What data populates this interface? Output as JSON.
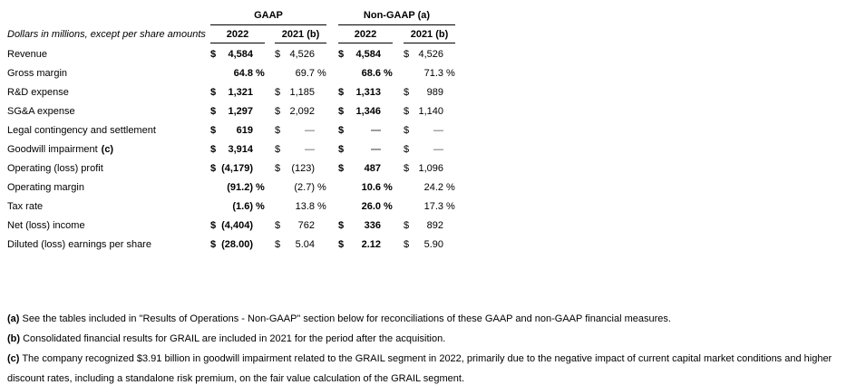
{
  "table": {
    "caption": "Dollars in millions, except per share amounts",
    "group_headers": [
      "GAAP",
      "Non-GAAP (a)"
    ],
    "col_headers": [
      "2022",
      "2021 (b)",
      "2022",
      "2021 (b)"
    ],
    "rows": [
      {
        "label": "Revenue",
        "note": "",
        "cells": [
          {
            "c": "$",
            "v": "4,584",
            "s": ""
          },
          {
            "c": "$",
            "v": "4,526",
            "s": ""
          },
          {
            "c": "$",
            "v": "4,584",
            "s": ""
          },
          {
            "c": "$",
            "v": "4,526",
            "s": ""
          }
        ]
      },
      {
        "label": "Gross margin",
        "note": "",
        "cells": [
          {
            "c": "",
            "v": "64.8",
            "s": "%"
          },
          {
            "c": "",
            "v": "69.7",
            "s": "%"
          },
          {
            "c": "",
            "v": "68.6",
            "s": "%"
          },
          {
            "c": "",
            "v": "71.3",
            "s": "%"
          }
        ]
      },
      {
        "label": "R&D expense",
        "note": "",
        "cells": [
          {
            "c": "$",
            "v": "1,321",
            "s": ""
          },
          {
            "c": "$",
            "v": "1,185",
            "s": ""
          },
          {
            "c": "$",
            "v": "1,313",
            "s": ""
          },
          {
            "c": "$",
            "v": "989",
            "s": ""
          }
        ]
      },
      {
        "label": "SG&A expense",
        "note": "",
        "cells": [
          {
            "c": "$",
            "v": "1,297",
            "s": ""
          },
          {
            "c": "$",
            "v": "2,092",
            "s": ""
          },
          {
            "c": "$",
            "v": "1,346",
            "s": ""
          },
          {
            "c": "$",
            "v": "1,140",
            "s": ""
          }
        ]
      },
      {
        "label": "Legal contingency and settlement",
        "note": "",
        "cells": [
          {
            "c": "$",
            "v": "619",
            "s": ""
          },
          {
            "c": "$",
            "v": "—",
            "s": ""
          },
          {
            "c": "$",
            "v": "—",
            "s": ""
          },
          {
            "c": "$",
            "v": "—",
            "s": ""
          }
        ]
      },
      {
        "label": "Goodwill impairment",
        "note": "(c)",
        "cells": [
          {
            "c": "$",
            "v": "3,914",
            "s": ""
          },
          {
            "c": "$",
            "v": "—",
            "s": ""
          },
          {
            "c": "$",
            "v": "—",
            "s": ""
          },
          {
            "c": "$",
            "v": "—",
            "s": ""
          }
        ]
      },
      {
        "label": "Operating (loss) profit",
        "note": "",
        "cells": [
          {
            "c": "$",
            "v": "(4,179)",
            "s": ""
          },
          {
            "c": "$",
            "v": "(123)",
            "s": ""
          },
          {
            "c": "$",
            "v": "487",
            "s": ""
          },
          {
            "c": "$",
            "v": "1,096",
            "s": ""
          }
        ]
      },
      {
        "label": "Operating margin",
        "note": "",
        "cells": [
          {
            "c": "",
            "v": "(91.2)",
            "s": "%"
          },
          {
            "c": "",
            "v": "(2.7)",
            "s": "%"
          },
          {
            "c": "",
            "v": "10.6",
            "s": "%"
          },
          {
            "c": "",
            "v": "24.2",
            "s": "%"
          }
        ]
      },
      {
        "label": "Tax rate",
        "note": "",
        "cells": [
          {
            "c": "",
            "v": "(1.6)",
            "s": "%"
          },
          {
            "c": "",
            "v": "13.8",
            "s": "%"
          },
          {
            "c": "",
            "v": "26.0",
            "s": "%"
          },
          {
            "c": "",
            "v": "17.3",
            "s": "%"
          }
        ]
      },
      {
        "label": "Net (loss) income",
        "note": "",
        "cells": [
          {
            "c": "$",
            "v": "(4,404)",
            "s": ""
          },
          {
            "c": "$",
            "v": "762",
            "s": ""
          },
          {
            "c": "$",
            "v": "336",
            "s": ""
          },
          {
            "c": "$",
            "v": "892",
            "s": ""
          }
        ]
      },
      {
        "label": "Diluted (loss) earnings per share",
        "note": "",
        "cells": [
          {
            "c": "$",
            "v": "(28.00)",
            "s": ""
          },
          {
            "c": "$",
            "v": "5.04",
            "s": ""
          },
          {
            "c": "$",
            "v": "2.12",
            "s": ""
          },
          {
            "c": "$",
            "v": "5.90",
            "s": ""
          }
        ]
      }
    ]
  },
  "footnotes": [
    {
      "marker": "(a)",
      "lines": [
        "See the tables included in \"Results of Operations - Non-GAAP\" section below for reconciliations of these GAAP and non-GAAP financial measures."
      ]
    },
    {
      "marker": "(b)",
      "lines": [
        "Consolidated financial results for GRAIL are included in 2021 for the period after the acquisition."
      ]
    },
    {
      "marker": "(c)",
      "lines": [
        "The company recognized $3.91 billion in goodwill impairment related to the GRAIL segment in 2022, primarily due to the negative impact of current capital market conditions and higher",
        "discount rates, including a standalone risk premium, on the fair value calculation of the GRAIL segment."
      ]
    }
  ]
}
